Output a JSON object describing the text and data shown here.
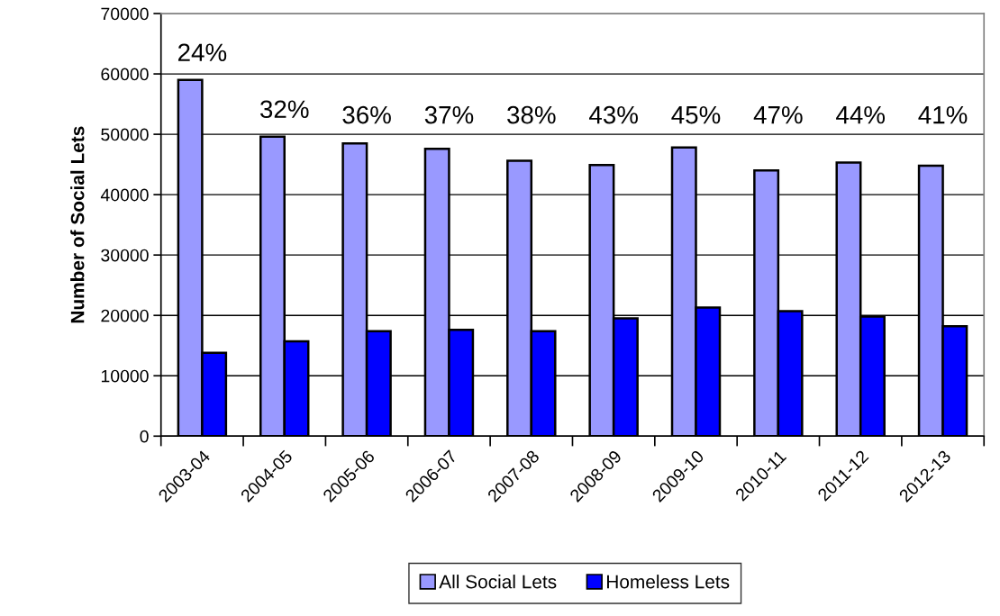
{
  "chart_data": {
    "type": "bar",
    "ylabel": "Number of Social Lets",
    "categories": [
      "2003-04",
      "2004-05",
      "2005-06",
      "2006-07",
      "2007-08",
      "2008-09",
      "2009-10",
      "2010-11",
      "2011-12",
      "2012-13"
    ],
    "series": [
      {
        "name": "All Social Lets",
        "color": "#9999ff",
        "values": [
          59000,
          49600,
          48500,
          47600,
          45600,
          44900,
          47800,
          44000,
          45300,
          44800
        ]
      },
      {
        "name": "Homeless Lets",
        "color": "#0000ff",
        "values": [
          13800,
          15700,
          17400,
          17600,
          17400,
          19500,
          21300,
          20700,
          19800,
          18200
        ]
      }
    ],
    "ylim": [
      0,
      70000
    ],
    "yticks": [
      0,
      10000,
      20000,
      30000,
      40000,
      50000,
      60000,
      70000
    ],
    "grid": "y",
    "legend": "bottom",
    "annotations": [
      "24%",
      "32%",
      "36%",
      "37%",
      "38%",
      "43%",
      "45%",
      "47%",
      "44%",
      "41%"
    ]
  }
}
